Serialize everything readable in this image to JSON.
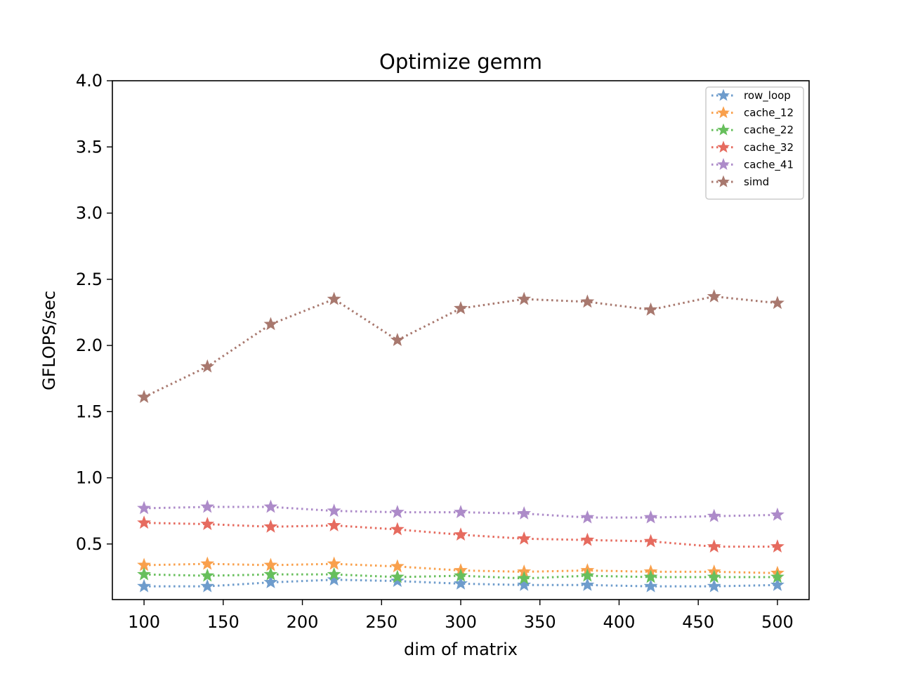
{
  "chart_data": {
    "type": "line",
    "title": "Optimize gemm",
    "xlabel": "dim of matrix",
    "ylabel": "GFLOPS/sec",
    "xlim": [
      80,
      520
    ],
    "ylim": [
      0.08,
      4.0
    ],
    "xticks": [
      100,
      150,
      200,
      250,
      300,
      350,
      400,
      450,
      500
    ],
    "yticks": [
      0.5,
      1.0,
      1.5,
      2.0,
      2.5,
      3.0,
      3.5,
      4.0
    ],
    "xtick_labels": [
      "100",
      "150",
      "200",
      "250",
      "300",
      "350",
      "400",
      "450",
      "500"
    ],
    "ytick_labels": [
      "0.5",
      "1.0",
      "1.5",
      "2.0",
      "2.5",
      "3.0",
      "3.5",
      "4.0"
    ],
    "grid": false,
    "legend_position": "top-right",
    "line_style": "dotted",
    "marker": "star",
    "x": [
      100,
      140,
      180,
      220,
      260,
      300,
      340,
      380,
      420,
      460,
      500
    ],
    "series": [
      {
        "name": "row_loop",
        "color": "#6e9ccc",
        "values": [
          0.18,
          0.18,
          0.21,
          0.23,
          0.22,
          0.2,
          0.19,
          0.19,
          0.18,
          0.18,
          0.19
        ]
      },
      {
        "name": "cache_12",
        "color": "#f9a04c",
        "values": [
          0.34,
          0.35,
          0.34,
          0.35,
          0.33,
          0.3,
          0.29,
          0.3,
          0.29,
          0.29,
          0.28
        ]
      },
      {
        "name": "cache_22",
        "color": "#67bf5c",
        "values": [
          0.27,
          0.26,
          0.27,
          0.27,
          0.25,
          0.26,
          0.24,
          0.26,
          0.25,
          0.25,
          0.25
        ]
      },
      {
        "name": "cache_32",
        "color": "#e66b5f",
        "values": [
          0.66,
          0.65,
          0.63,
          0.64,
          0.61,
          0.57,
          0.54,
          0.53,
          0.52,
          0.48,
          0.48
        ]
      },
      {
        "name": "cache_41",
        "color": "#ad8bc9",
        "values": [
          0.77,
          0.78,
          0.78,
          0.75,
          0.74,
          0.74,
          0.73,
          0.7,
          0.7,
          0.71,
          0.72
        ]
      },
      {
        "name": "simd",
        "color": "#a8786e",
        "values": [
          1.61,
          1.84,
          2.16,
          2.35,
          2.04,
          2.28,
          2.35,
          2.33,
          2.27,
          2.37,
          2.32
        ]
      }
    ]
  }
}
